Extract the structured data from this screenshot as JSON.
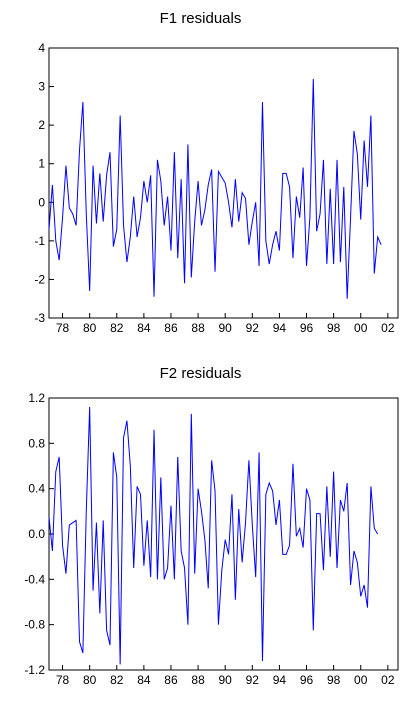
{
  "colors": {
    "line": "#0000ff",
    "axis": "#000000",
    "background": "#ffffff"
  },
  "chart_data": [
    {
      "type": "line",
      "title": "F1 residuals",
      "xlabel": "",
      "ylabel": "",
      "xlim": [
        1977,
        2002.75
      ],
      "ylim": [
        -3,
        4
      ],
      "grid": false,
      "yticks": [
        -3,
        -2,
        -1,
        0,
        1,
        2,
        3,
        4
      ],
      "ytick_labels": [
        "-3",
        "-2",
        "-1",
        "0",
        "1",
        "2",
        "3",
        "4"
      ],
      "xticks": [
        1978,
        1980,
        1982,
        1984,
        1986,
        1988,
        1990,
        1992,
        1994,
        1996,
        1998,
        2000,
        2002
      ],
      "xtick_labels": [
        "78",
        "80",
        "82",
        "84",
        "86",
        "88",
        "90",
        "92",
        "94",
        "96",
        "98",
        "00",
        "02"
      ],
      "series": [
        {
          "x_start": 1977.0,
          "x_step": 0.25,
          "values": [
            -0.7,
            0.45,
            -1.0,
            -1.5,
            -0.4,
            0.95,
            -0.15,
            -0.3,
            -0.6,
            1.35,
            2.6,
            -0.3,
            -2.3,
            0.95,
            -0.55,
            0.75,
            -0.5,
            0.7,
            1.3,
            -1.15,
            -0.7,
            2.25,
            -0.6,
            -1.55,
            -0.9,
            0.15,
            -0.9,
            -0.4,
            0.55,
            0.0,
            0.7,
            -2.45,
            1.1,
            0.55,
            -0.6,
            0.15,
            -1.25,
            1.3,
            -1.45,
            0.6,
            -2.1,
            1.5,
            -1.95,
            -0.5,
            0.55,
            -0.6,
            -0.2,
            0.45,
            0.85,
            -1.8,
            0.8,
            0.65,
            0.5,
            0.0,
            -0.65,
            0.6,
            -0.5,
            0.25,
            0.1,
            -1.1,
            -0.5,
            0.0,
            -1.65,
            2.6,
            -1.0,
            -1.6,
            -1.1,
            -0.75,
            -1.25,
            0.75,
            0.75,
            0.4,
            -1.45,
            0.15,
            -0.4,
            0.9,
            -1.65,
            -0.4,
            3.2,
            -0.75,
            -0.3,
            1.1,
            -1.6,
            0.35,
            -1.6,
            1.1,
            -1.55,
            0.4,
            -2.5,
            -0.4,
            1.85,
            1.25,
            -0.45,
            1.6,
            0.4,
            2.25,
            -1.85,
            -0.9,
            -1.1
          ]
        }
      ]
    },
    {
      "type": "line",
      "title": "F2 residuals",
      "xlabel": "",
      "ylabel": "",
      "xlim": [
        1977,
        2002.75
      ],
      "ylim": [
        -1.2,
        1.2
      ],
      "grid": false,
      "yticks": [
        -1.2,
        -0.8,
        -0.4,
        0.0,
        0.4,
        0.8,
        1.2
      ],
      "ytick_labels": [
        "-1.2",
        "-0.8",
        "-0.4",
        "0.0",
        "0.4",
        "0.8",
        "1.2"
      ],
      "xticks": [
        1978,
        1980,
        1982,
        1984,
        1986,
        1988,
        1990,
        1992,
        1994,
        1996,
        1998,
        2000,
        2002
      ],
      "xtick_labels": [
        "78",
        "80",
        "82",
        "84",
        "86",
        "88",
        "90",
        "92",
        "94",
        "96",
        "98",
        "00",
        "02"
      ],
      "series": [
        {
          "x_start": 1977.0,
          "x_step": 0.25,
          "values": [
            0.15,
            -0.15,
            0.55,
            0.68,
            -0.1,
            -0.35,
            0.08,
            0.1,
            0.12,
            -0.95,
            -1.05,
            0.2,
            1.12,
            -0.5,
            0.1,
            -0.7,
            0.12,
            -0.85,
            -0.98,
            0.72,
            0.5,
            -1.15,
            0.85,
            1.0,
            0.6,
            -0.3,
            0.42,
            0.35,
            -0.28,
            0.12,
            -0.38,
            0.92,
            -0.4,
            0.5,
            -0.4,
            -0.3,
            0.25,
            -0.4,
            0.68,
            -0.15,
            -0.3,
            -0.8,
            1.06,
            -0.35,
            0.4,
            0.2,
            -0.05,
            -0.48,
            0.65,
            0.38,
            -0.8,
            -0.32,
            -0.05,
            -0.18,
            0.35,
            -0.58,
            0.22,
            -0.25,
            0.1,
            0.65,
            0.08,
            -0.38,
            0.72,
            -1.12,
            0.35,
            0.45,
            0.38,
            0.08,
            0.3,
            -0.18,
            -0.18,
            -0.1,
            0.62,
            -0.02,
            0.05,
            -0.12,
            0.4,
            0.3,
            -0.85,
            0.18,
            0.18,
            -0.32,
            0.42,
            -0.2,
            0.55,
            -0.3,
            0.3,
            0.2,
            0.45,
            -0.45,
            -0.15,
            -0.25,
            -0.55,
            -0.45,
            -0.65,
            0.42,
            0.05,
            0.0
          ]
        }
      ]
    }
  ]
}
